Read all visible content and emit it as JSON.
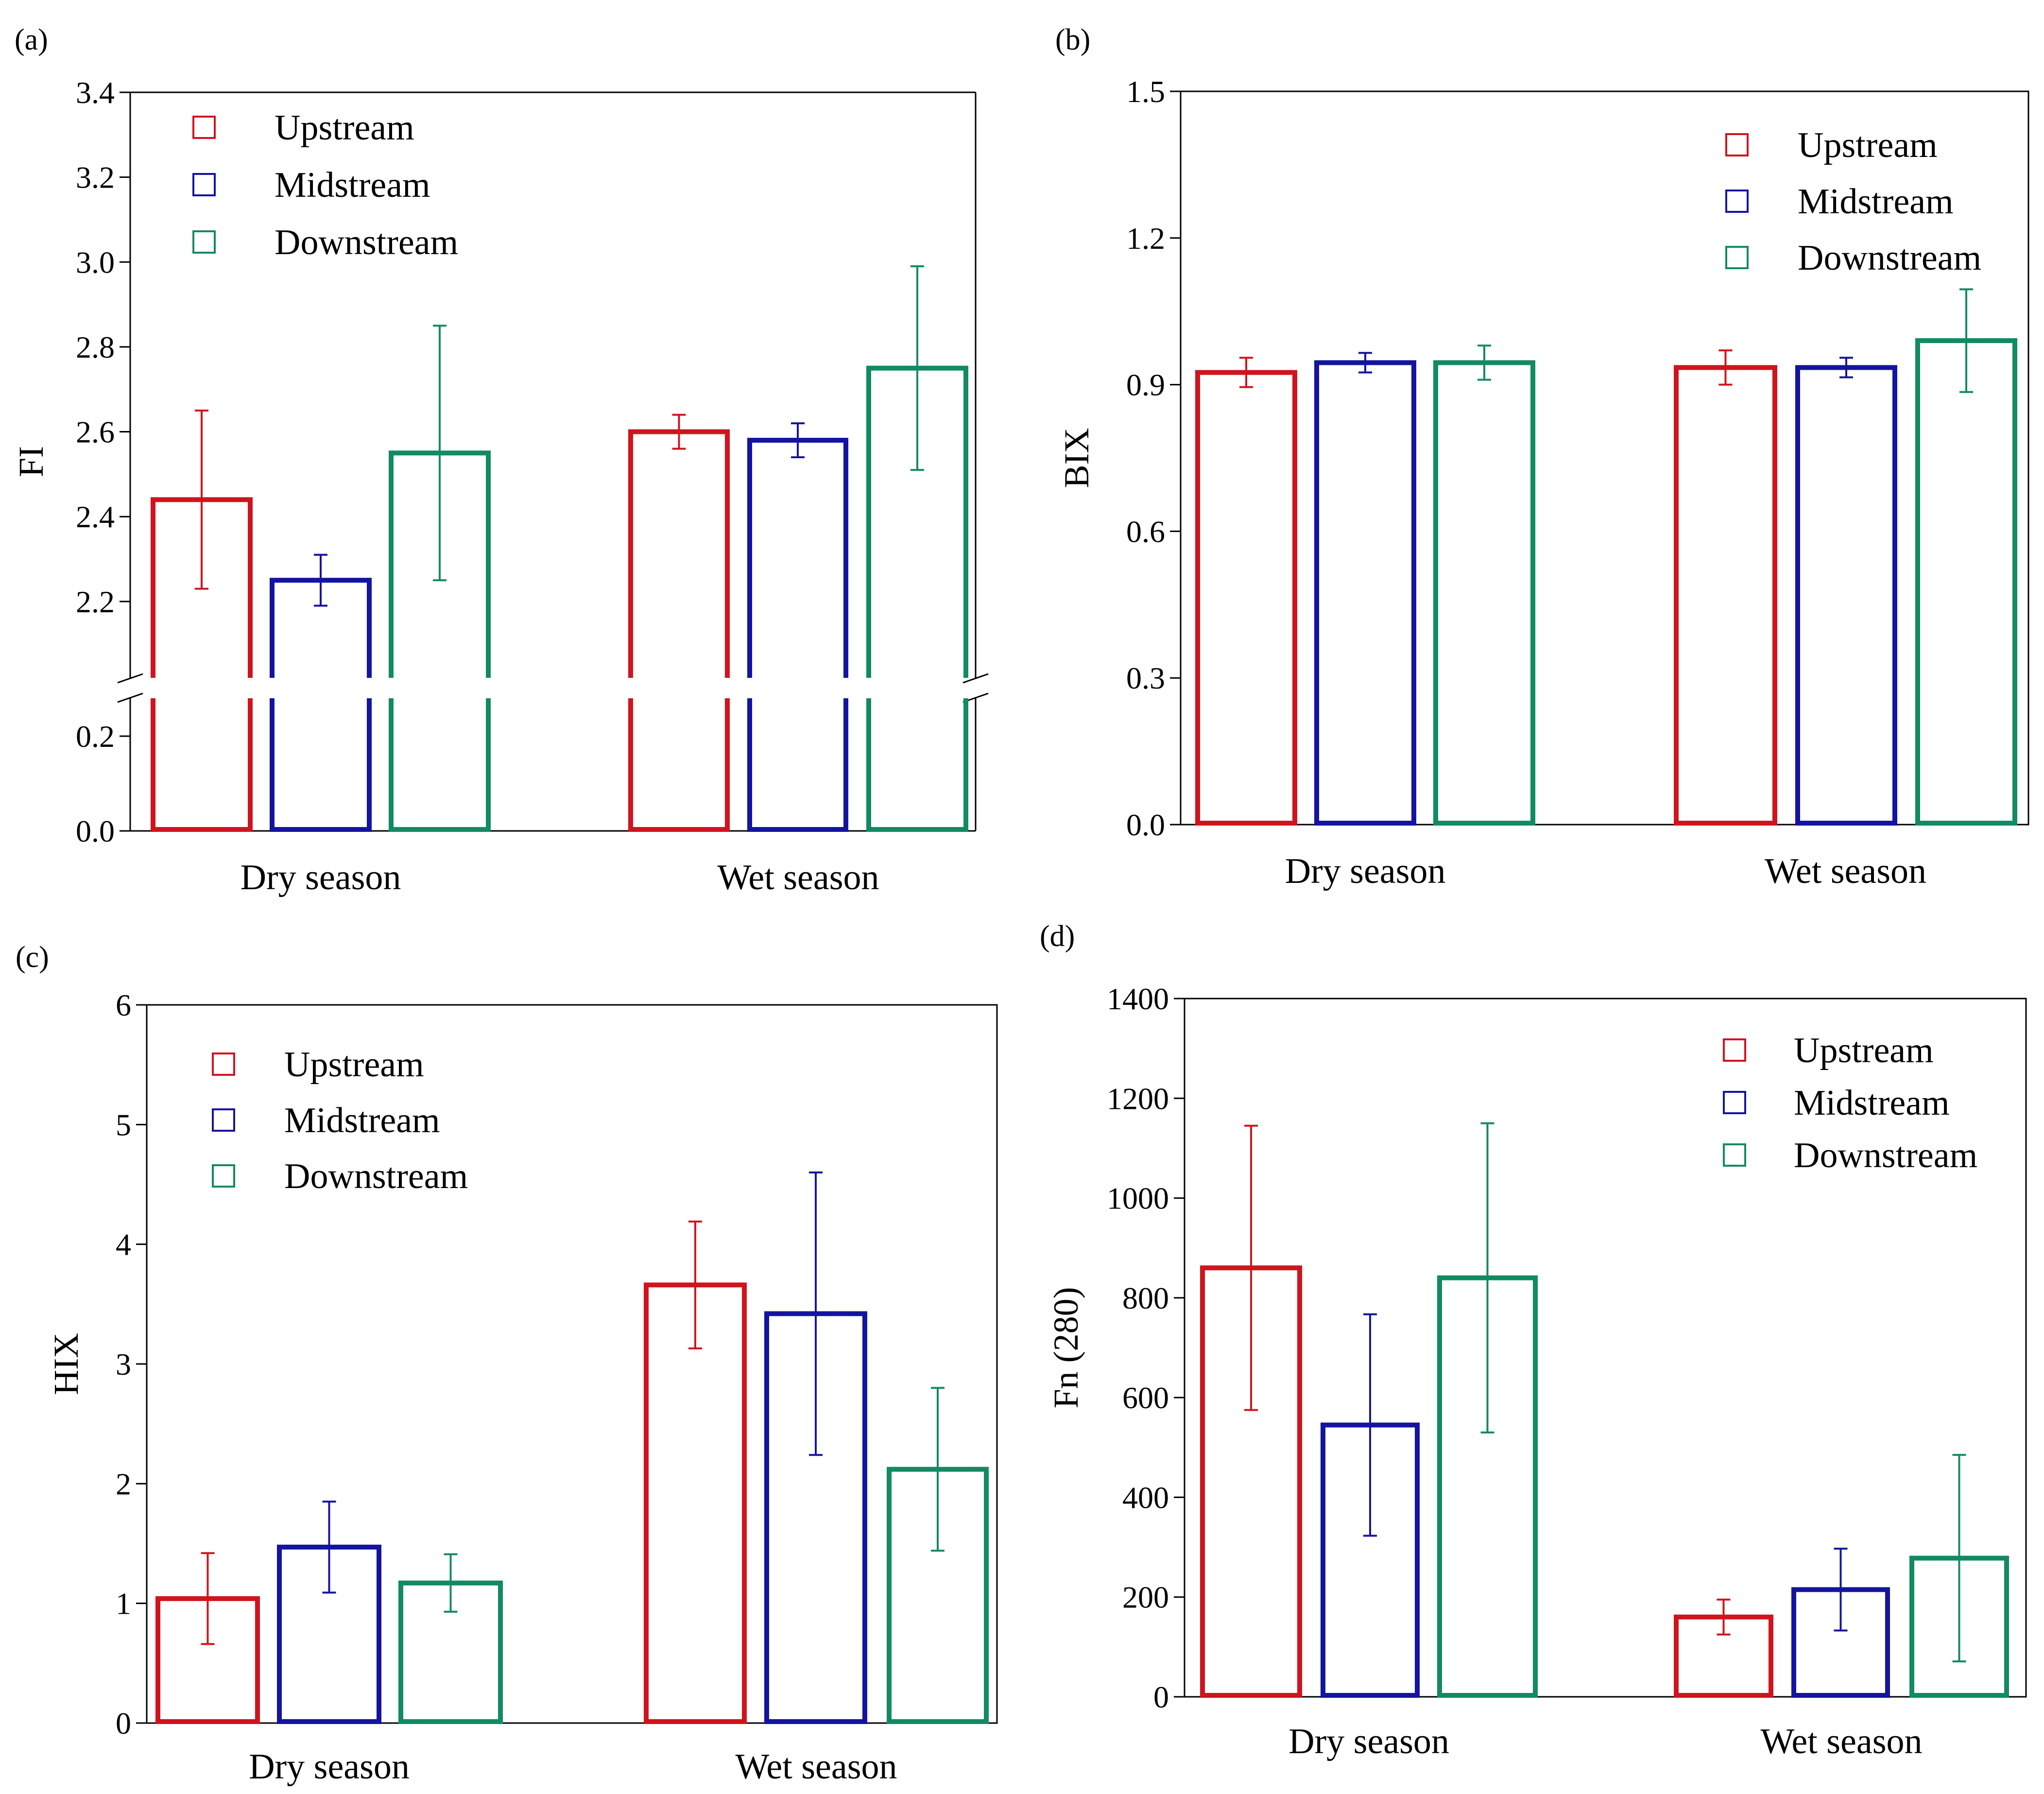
{
  "figure": {
    "series_names": [
      "Upstream",
      "Midstream",
      "Downstream"
    ],
    "colors": {
      "Upstream": "#d0141e",
      "Midstream": "#1414a0",
      "Downstream": "#128a64"
    }
  },
  "chart_data": [
    {
      "id": "a",
      "panel_label": "(a)",
      "type": "bar",
      "title": "",
      "xlabel": "",
      "ylabel": "FI",
      "categories": [
        "Dry season",
        "Wet season"
      ],
      "y_broken_axis": true,
      "ylim_lower": [
        0.0,
        0.28
      ],
      "ylim_upper": [
        2.02,
        3.4
      ],
      "yticks_lower": [
        "0.0",
        "0.2"
      ],
      "yticks_upper": [
        "2.2",
        "2.4",
        "2.6",
        "2.8",
        "3.0",
        "3.2",
        "3.4"
      ],
      "legend": "top-left",
      "series": [
        {
          "name": "Upstream",
          "values": [
            2.44,
            2.6
          ],
          "errors": [
            0.21,
            0.04
          ]
        },
        {
          "name": "Midstream",
          "values": [
            2.25,
            2.58
          ],
          "errors": [
            0.06,
            0.04
          ]
        },
        {
          "name": "Downstream",
          "values": [
            2.55,
            2.75
          ],
          "errors": [
            0.3,
            0.24
          ]
        }
      ]
    },
    {
      "id": "b",
      "panel_label": "(b)",
      "type": "bar",
      "title": "",
      "xlabel": "",
      "ylabel": "BIX",
      "categories": [
        "Dry season",
        "Wet season"
      ],
      "ylim": [
        0,
        1.5
      ],
      "yticks": [
        "0.0",
        "0.3",
        "0.6",
        "0.9",
        "1.2",
        "1.5"
      ],
      "legend": "top-right",
      "series": [
        {
          "name": "Upstream",
          "values": [
            0.925,
            0.935
          ],
          "errors": [
            0.03,
            0.035
          ]
        },
        {
          "name": "Midstream",
          "values": [
            0.945,
            0.935
          ],
          "errors": [
            0.02,
            0.02
          ]
        },
        {
          "name": "Downstream",
          "values": [
            0.945,
            0.99
          ],
          "errors": [
            0.035,
            0.105
          ]
        }
      ]
    },
    {
      "id": "c",
      "panel_label": "(c)",
      "type": "bar",
      "title": "",
      "xlabel": "",
      "ylabel": "HIX",
      "categories": [
        "Dry season",
        "Wet season"
      ],
      "ylim": [
        0,
        6
      ],
      "yticks": [
        "0",
        "1",
        "2",
        "3",
        "4",
        "5",
        "6"
      ],
      "legend": "top-left",
      "series": [
        {
          "name": "Upstream",
          "values": [
            1.04,
            3.66
          ],
          "errors": [
            0.38,
            0.53
          ]
        },
        {
          "name": "Midstream",
          "values": [
            1.47,
            3.42
          ],
          "errors": [
            0.38,
            1.18
          ]
        },
        {
          "name": "Downstream",
          "values": [
            1.17,
            2.12
          ],
          "errors": [
            0.24,
            0.68
          ]
        }
      ]
    },
    {
      "id": "d",
      "panel_label": "(d)",
      "type": "bar",
      "title": "",
      "xlabel": "",
      "ylabel": "Fn (280)",
      "categories": [
        "Dry season",
        "Wet season"
      ],
      "ylim": [
        0,
        1400
      ],
      "yticks": [
        "0",
        "200",
        "400",
        "600",
        "800",
        "1000",
        "1200",
        "1400"
      ],
      "legend": "top-right",
      "series": [
        {
          "name": "Upstream",
          "values": [
            860,
            160
          ],
          "errors": [
            285,
            35
          ]
        },
        {
          "name": "Midstream",
          "values": [
            545,
            215
          ],
          "errors": [
            222,
            82
          ]
        },
        {
          "name": "Downstream",
          "values": [
            840,
            278
          ],
          "errors": [
            310,
            207
          ]
        }
      ]
    }
  ]
}
